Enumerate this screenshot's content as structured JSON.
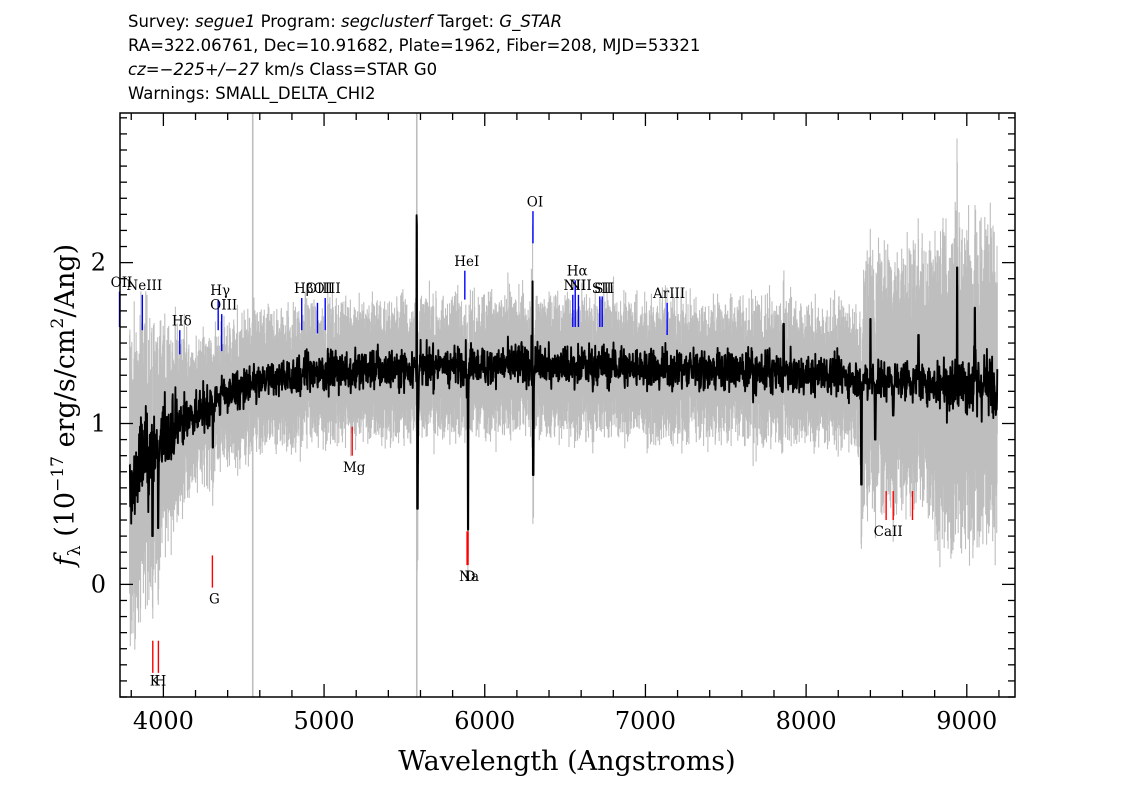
{
  "header": {
    "survey_label": "Survey:",
    "survey": "segue1",
    "program_label": "Program:",
    "program": "segclusterf",
    "target_label": "Target:",
    "target": "G_STAR",
    "line2": "RA=322.06761, Dec=10.91682, Plate=1962, Fiber=208, MJD=53321",
    "cz_label": "cz=",
    "cz_value": "−225+/−27",
    "cz_rest": " km/s  Class=STAR  G0",
    "warnings": "Warnings: SMALL_DELTA_CHI2"
  },
  "chart_data": {
    "type": "line",
    "title": "",
    "xlabel": "Wavelength (Angstroms)",
    "ylabel_main": "f",
    "ylabel_sub": "λ",
    "ylabel_rest": " (10",
    "ylabel_exp1": "−17",
    "ylabel_mid": " erg/s/cm",
    "ylabel_exp2": "2",
    "ylabel_end": "/Ang)",
    "xlim": [
      3730,
      9300
    ],
    "ylim": [
      -0.7,
      2.93
    ],
    "x_ticks": [
      4000,
      5000,
      6000,
      7000,
      8000,
      9000
    ],
    "x_tick_labels": [
      "4000",
      "5000",
      "6000",
      "7000",
      "8000",
      "9000"
    ],
    "y_ticks": [
      0,
      1,
      2
    ],
    "y_tick_labels": [
      "0",
      "1",
      "2"
    ],
    "vertical_lines": [
      4556,
      5577
    ],
    "colors": {
      "flux": "#000000",
      "error_band": "#bebebe",
      "emission": "#0000ff",
      "absorption": "#ff0000"
    },
    "series": [
      {
        "role": "flux",
        "x": [
          3800,
          3850,
          3900,
          3950,
          4000,
          4050,
          4100,
          4150,
          4200,
          4250,
          4300,
          4350,
          4400,
          4500,
          4600,
          4700,
          4800,
          4900,
          5000,
          5100,
          5200,
          5300,
          5400,
          5500,
          5600,
          5700,
          5800,
          5900,
          6000,
          6100,
          6200,
          6300,
          6400,
          6500,
          6600,
          6700,
          6800,
          6900,
          7000,
          7100,
          7200,
          7300,
          7400,
          7500,
          7600,
          7700,
          7800,
          7900,
          8000,
          8100,
          8200,
          8300,
          8400,
          8500,
          8600,
          8700,
          8800,
          8900,
          9000,
          9100,
          9180
        ],
        "y": [
          0.55,
          0.75,
          0.8,
          0.85,
          0.9,
          0.95,
          1.0,
          1.05,
          1.05,
          1.1,
          1.15,
          1.15,
          1.2,
          1.22,
          1.25,
          1.28,
          1.3,
          1.32,
          1.32,
          1.33,
          1.33,
          1.34,
          1.34,
          1.35,
          1.35,
          1.36,
          1.36,
          1.37,
          1.36,
          1.37,
          1.37,
          1.37,
          1.37,
          1.37,
          1.37,
          1.36,
          1.36,
          1.35,
          1.35,
          1.35,
          1.34,
          1.34,
          1.33,
          1.33,
          1.32,
          1.32,
          1.31,
          1.31,
          1.3,
          1.3,
          1.3,
          1.29,
          1.28,
          1.27,
          1.27,
          1.26,
          1.26,
          1.25,
          1.25,
          1.24,
          1.25
        ]
      }
    ],
    "features": [
      {
        "x": 3810,
        "y": 0.58,
        "depth": 0.25
      },
      {
        "x": 3933,
        "y": 0.3,
        "depth": 0.45
      },
      {
        "x": 3968,
        "y": 0.35,
        "depth": 0.55
      },
      {
        "x": 4308,
        "y": 0.85,
        "depth": 0.4
      },
      {
        "x": 4861,
        "y": 1.3,
        "depth": 0.3
      },
      {
        "x": 5172,
        "y": 1.33,
        "depth": 0.25
      },
      {
        "x": 5577,
        "y": 2.4,
        "depth": -0.9
      },
      {
        "x": 5582,
        "y": 0.47,
        "depth": 0.9
      },
      {
        "x": 5893,
        "y": 1.36,
        "depth": 0.48
      },
      {
        "x": 5896,
        "y": 0.34,
        "depth": 0.68
      },
      {
        "x": 6300,
        "y": 2.02,
        "depth": -0.6
      },
      {
        "x": 6302,
        "y": 0.68,
        "depth": 0.7
      },
      {
        "x": 6563,
        "y": 1.37,
        "depth": 0.2
      },
      {
        "x": 7860,
        "y": 1.62,
        "depth": -0.3
      },
      {
        "x": 8344,
        "y": 0.62,
        "depth": 0.7
      },
      {
        "x": 8400,
        "y": 1.65,
        "depth": -0.35
      },
      {
        "x": 8430,
        "y": 0.9,
        "depth": 0.35
      },
      {
        "x": 8542,
        "y": 1.05,
        "depth": 0.22
      },
      {
        "x": 8700,
        "y": 1.55,
        "depth": -0.3
      },
      {
        "x": 8940,
        "y": 1.97,
        "depth": -0.7
      },
      {
        "x": 9050,
        "y": 1.72,
        "depth": -0.45
      }
    ],
    "annotations": [
      {
        "label": "OII",
        "x": 3727,
        "ytip": 1.82,
        "ybot": 1.6,
        "ytext": 1.85,
        "kind": "emission"
      },
      {
        "label": "NeIII",
        "x": 3869,
        "ytip": 1.8,
        "ybot": 1.58,
        "ytext": 1.83,
        "kind": "emission"
      },
      {
        "label": "Hδ",
        "x": 4102,
        "ytip": 1.58,
        "ybot": 1.43,
        "ytext": 1.61,
        "kind": "emission"
      },
      {
        "label": "Hγ",
        "x": 4341,
        "ytip": 1.77,
        "ybot": 1.58,
        "ytext": 1.8,
        "kind": "emission"
      },
      {
        "label": "OIII",
        "x": 4363,
        "ytip": 1.68,
        "ybot": 1.45,
        "ytext": 1.71,
        "kind": "emission"
      },
      {
        "label": "Hβ",
        "x": 4861,
        "ytip": 1.78,
        "ybot": 1.58,
        "ytext": 1.81,
        "kind": "emission"
      },
      {
        "label": "OIII",
        "x": 4959,
        "ytip": 1.75,
        "ybot": 1.56,
        "ytext": 1.81,
        "kind": "emission"
      },
      {
        "label": "OIII",
        "x": 5007,
        "ytip": 1.78,
        "ybot": 1.58,
        "ytext": 1.81,
        "kind": "emission"
      },
      {
        "label": "HeI",
        "x": 5876,
        "ytip": 1.95,
        "ybot": 1.77,
        "ytext": 1.98,
        "kind": "emission"
      },
      {
        "label": "OI",
        "x": 6300,
        "ytip": 2.32,
        "ybot": 2.12,
        "ytext": 2.35,
        "kind": "emission"
      },
      {
        "label": "NII",
        "x": 6548,
        "ytip": 1.8,
        "ybot": 1.6,
        "ytext": 1.83,
        "kind": "emission"
      },
      {
        "label": "Hα",
        "x": 6563,
        "ytip": 1.89,
        "ybot": 1.6,
        "ytext": 1.92,
        "kind": "emission"
      },
      {
        "label": "NII",
        "x": 6583,
        "ytip": 1.8,
        "ybot": 1.6,
        "ytext": 1.83,
        "kind": "emission"
      },
      {
        "label": "SII",
        "x": 6716,
        "ytip": 1.79,
        "ybot": 1.6,
        "ytext": 1.81,
        "kind": "emission"
      },
      {
        "label": "SII",
        "x": 6731,
        "ytip": 1.79,
        "ybot": 1.6,
        "ytext": 1.81,
        "kind": "emission"
      },
      {
        "label": "ArIII",
        "x": 7135,
        "ytip": 1.75,
        "ybot": 1.55,
        "ytext": 1.78,
        "kind": "emission"
      },
      {
        "label": "K",
        "x": 3934,
        "ytip": -0.35,
        "ybot": -0.55,
        "ytext": -0.63,
        "kind": "absorption"
      },
      {
        "label": "H",
        "x": 3969,
        "ytip": -0.35,
        "ybot": -0.55,
        "ytext": -0.63,
        "kind": "absorption"
      },
      {
        "label": "G",
        "x": 4305,
        "ytip": 0.18,
        "ybot": -0.02,
        "ytext": -0.12,
        "kind": "absorption"
      },
      {
        "label": "Mg",
        "x": 5175,
        "ytip": 0.98,
        "ybot": 0.8,
        "ytext": 0.7,
        "kind": "absorption"
      },
      {
        "label": "Na",
        "x": 5890,
        "ytip": 0.33,
        "ybot": 0.12,
        "ytext": 0.02,
        "kind": "absorption"
      },
      {
        "label": "D",
        "x": 5896,
        "ytip": 0.33,
        "ybot": 0.12,
        "ytext": 0.02,
        "kind": "absorption"
      },
      {
        "label": "CaII",
        "x": 8498,
        "ytip": 0.58,
        "ybot": 0.4,
        "ytext": 0.3,
        "kind": "absorption"
      },
      {
        "label": "",
        "x": 8542,
        "ytip": 0.58,
        "ybot": 0.4,
        "ytext": 0.3,
        "kind": "absorption"
      },
      {
        "label": "",
        "x": 8662,
        "ytip": 0.58,
        "ybot": 0.4,
        "ytext": 0.3,
        "kind": "absorption"
      }
    ]
  }
}
